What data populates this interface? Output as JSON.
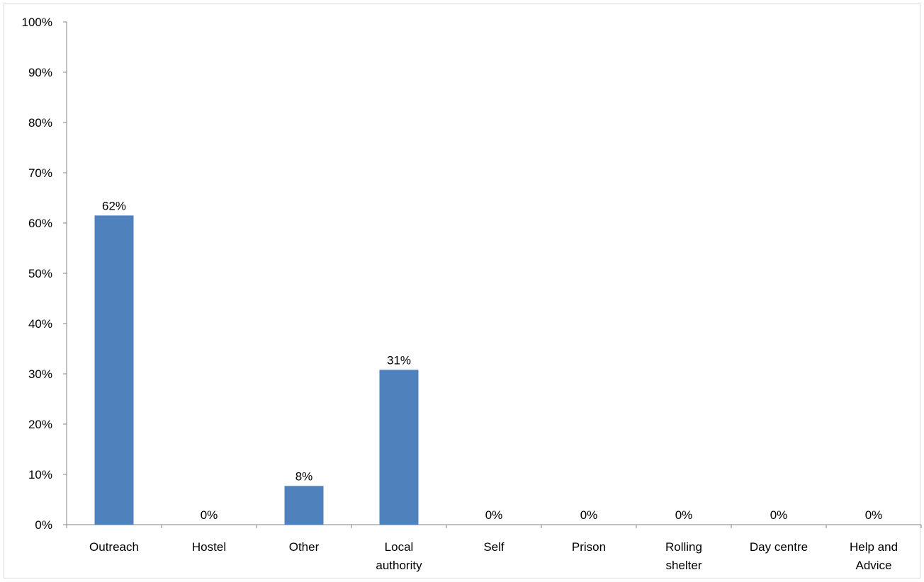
{
  "chart_data": {
    "type": "bar",
    "title": "",
    "xlabel": "",
    "ylabel": "",
    "ylim": [
      0,
      100
    ],
    "y_ticks": [
      "0%",
      "10%",
      "20%",
      "30%",
      "40%",
      "50%",
      "60%",
      "70%",
      "80%",
      "90%",
      "100%"
    ],
    "categories": [
      [
        "Outreach"
      ],
      [
        "Hostel"
      ],
      [
        "Other"
      ],
      [
        "Local",
        "authority"
      ],
      [
        "Self"
      ],
      [
        "Prison"
      ],
      [
        "Rolling",
        "shelter"
      ],
      [
        "Day centre"
      ],
      [
        "Help and",
        "Advice"
      ]
    ],
    "values": [
      61.5,
      0,
      7.7,
      30.8,
      0,
      0,
      0,
      0,
      0
    ],
    "data_labels": [
      "62%",
      "0%",
      "8%",
      "31%",
      "0%",
      "0%",
      "0%",
      "0%",
      "0%"
    ],
    "grid": false,
    "legend": "none",
    "bar_color": "#4f81bd",
    "axis_color": "#868686"
  }
}
